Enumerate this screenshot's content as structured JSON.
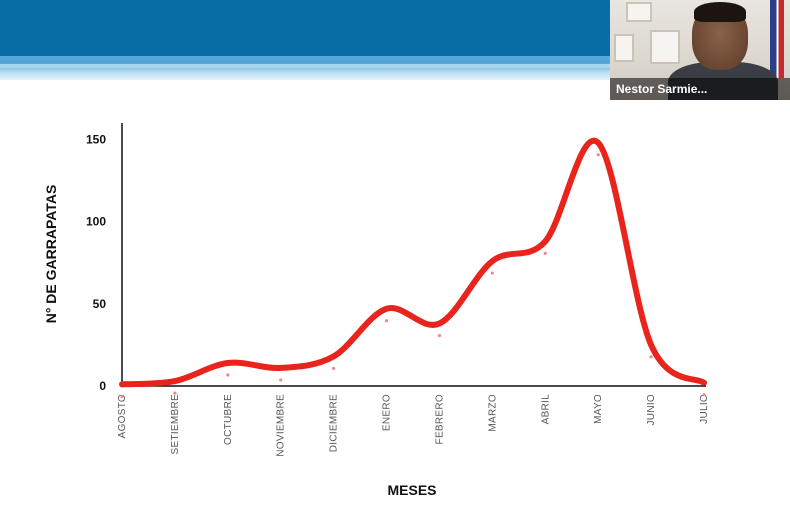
{
  "webcam": {
    "participant_name": "Nestor Sarmie..."
  },
  "chart_data": {
    "type": "line",
    "title": "",
    "xlabel": "MESES",
    "ylabel": "N° DE GARRAPATAS",
    "categories": [
      "AGOSTO",
      "SETIEMBRE",
      "OCTUBRE",
      "NOVIEMBRE",
      "DICIEMBRE",
      "ENERO",
      "FEBRERO",
      "MARZO",
      "ABRIL",
      "MAYO",
      "JUNIO",
      "JULIO"
    ],
    "ylim": [
      0,
      160
    ],
    "yticks": [
      "0",
      "50",
      "100",
      "150"
    ],
    "series": [
      {
        "values": [
          1,
          3,
          14,
          11,
          18,
          47,
          38,
          76,
          88,
          148,
          25,
          2
        ],
        "color": "#e8241c"
      }
    ],
    "grid": false,
    "legend": "none"
  }
}
